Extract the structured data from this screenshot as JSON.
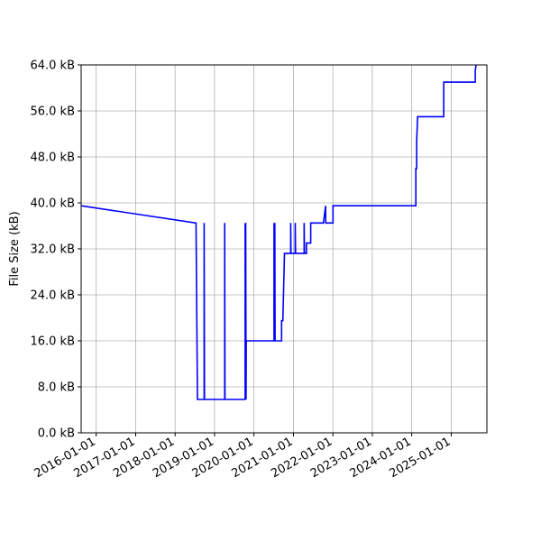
{
  "chart_data": {
    "type": "line",
    "title": "",
    "xlabel": "",
    "ylabel": "File Size (kB)",
    "xlim": [
      "2015-08-15",
      "2025-11-27"
    ],
    "ylim": [
      0,
      64
    ],
    "grid": true,
    "line_color": "#0000ff",
    "x_ticks": [
      "2016-01-01",
      "2017-01-01",
      "2018-01-01",
      "2019-01-01",
      "2020-01-01",
      "2021-01-01",
      "2022-01-01",
      "2023-01-01",
      "2024-01-01",
      "2025-01-01"
    ],
    "y_ticks": [
      0,
      8,
      16,
      24,
      32,
      40,
      48,
      56,
      64
    ],
    "y_tick_labels": [
      "0.0 kB",
      "8.0 kB",
      "16.0 kB",
      "24.0 kB",
      "32.0 kB",
      "40.0 kB",
      "48.0 kB",
      "56.0 kB",
      "64.0 kB"
    ],
    "points": [
      [
        "2015-08-15",
        39.5
      ],
      [
        "2018-07-14",
        36.5
      ],
      [
        "2018-07-27",
        5.8
      ],
      [
        "2018-09-27",
        5.8
      ],
      [
        "2018-09-27",
        36.5
      ],
      [
        "2018-09-30",
        5.8
      ],
      [
        "2019-04-05",
        5.8
      ],
      [
        "2019-04-05",
        36.5
      ],
      [
        "2019-04-08",
        5.8
      ],
      [
        "2019-10-12",
        5.8
      ],
      [
        "2019-10-12",
        36.5
      ],
      [
        "2019-10-15",
        5.8
      ],
      [
        "2019-10-17",
        36.5
      ],
      [
        "2019-10-20",
        5.8
      ],
      [
        "2019-10-22",
        16
      ],
      [
        "2019-11-01",
        16
      ],
      [
        "2020-07-05",
        16
      ],
      [
        "2020-07-05",
        36.5
      ],
      [
        "2020-07-08",
        16
      ],
      [
        "2020-07-12",
        36.5
      ],
      [
        "2020-07-15",
        16
      ],
      [
        "2020-09-13",
        16
      ],
      [
        "2020-09-13",
        19.5
      ],
      [
        "2020-09-25",
        19.5
      ],
      [
        "2020-10-10",
        31.2
      ],
      [
        "2020-12-06",
        31.2
      ],
      [
        "2020-12-06",
        36.5
      ],
      [
        "2020-12-09",
        31.2
      ],
      [
        "2021-01-17",
        31.2
      ],
      [
        "2021-01-17",
        36.5
      ],
      [
        "2021-01-20",
        31.2
      ],
      [
        "2021-04-10",
        31.2
      ],
      [
        "2021-04-10",
        36.5
      ],
      [
        "2021-04-13",
        31.2
      ],
      [
        "2021-05-01",
        31.2
      ],
      [
        "2021-05-01",
        33
      ],
      [
        "2021-06-10",
        33
      ],
      [
        "2021-06-10",
        36.5
      ],
      [
        "2021-10-05",
        36.5
      ],
      [
        "2021-10-25",
        39.5
      ],
      [
        "2021-10-27",
        36.5
      ],
      [
        "2022-01-02",
        36.5
      ],
      [
        "2022-01-02",
        39.5
      ],
      [
        "2024-02-08",
        39.5
      ],
      [
        "2024-02-08",
        46
      ],
      [
        "2024-02-16",
        46
      ],
      [
        "2024-02-16",
        50.5
      ],
      [
        "2024-02-24",
        55
      ],
      [
        "2024-10-23",
        55
      ],
      [
        "2024-10-23",
        61
      ],
      [
        "2025-08-11",
        61
      ],
      [
        "2025-08-11",
        63
      ],
      [
        "2025-08-19",
        64
      ]
    ]
  }
}
